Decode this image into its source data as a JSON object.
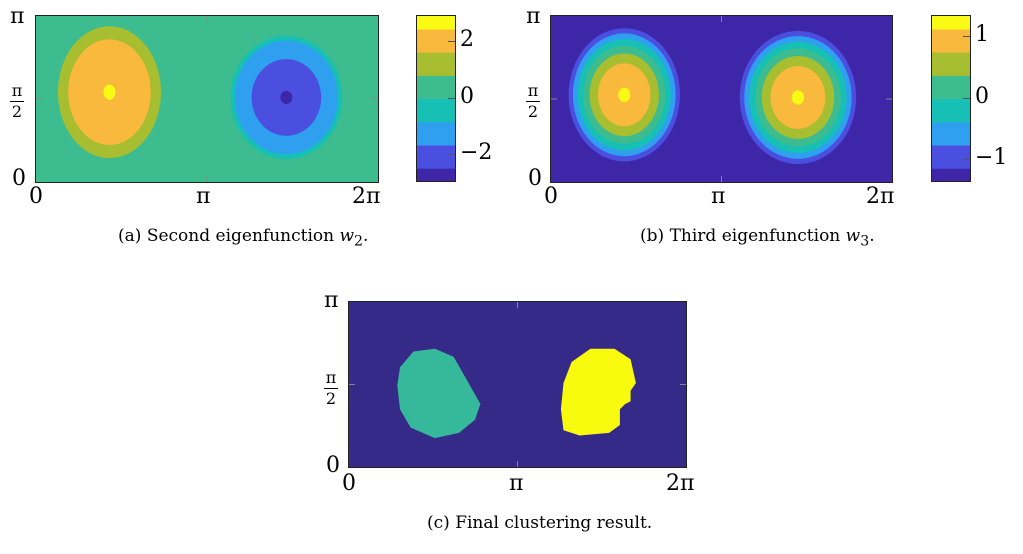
{
  "chart_data": [
    {
      "type": "heatmap",
      "caption_tag": "(a)",
      "caption_text": "Second eigenfunction",
      "caption_var": "w",
      "caption_sub": "2",
      "caption_end": ".",
      "xticks": [
        "0",
        "π",
        "2π"
      ],
      "yticks": [
        "0",
        "π",
        "π",
        "2"
      ],
      "xlim": [
        0,
        6.2832
      ],
      "ylim": [
        0,
        3.1416
      ],
      "colorbar": {
        "ticks": [
          "2",
          "0",
          "−2"
        ],
        "tick_values": [
          2,
          0,
          -2
        ],
        "range": [
          -2.9,
          2.9
        ]
      },
      "colors": [
        "#3e26a8",
        "#4a4fe0",
        "#2f9ff0",
        "#16c0b4",
        "#3cbc8f",
        "#a6be30",
        "#f8b93d",
        "#f9fb15"
      ],
      "background_value": 0,
      "blobs": [
        {
          "x": 1.35,
          "y": 1.7,
          "rx": 1.1,
          "ry": 1.45,
          "peak": 2.9
        },
        {
          "x": 4.6,
          "y": 1.6,
          "rx": 1.1,
          "ry": 1.25,
          "peak": -2.9
        }
      ]
    },
    {
      "type": "heatmap",
      "caption_tag": "(b)",
      "caption_text": "Third eigenfunction",
      "caption_var": "w",
      "caption_sub": "3",
      "caption_end": ".",
      "xticks": [
        "0",
        "π",
        "2π"
      ],
      "yticks": [
        "0",
        "π",
        "π",
        "2"
      ],
      "xlim": [
        0,
        6.2832
      ],
      "ylim": [
        0,
        3.1416
      ],
      "colorbar": {
        "ticks": [
          "1",
          "0",
          "−1"
        ],
        "tick_values": [
          1,
          0,
          -1
        ],
        "range": [
          -1.35,
          1.35
        ]
      },
      "colors": [
        "#3e26a8",
        "#4a4fe0",
        "#2f9ff0",
        "#16c0b4",
        "#3cbc8f",
        "#a6be30",
        "#f8b93d",
        "#f9fb15"
      ],
      "background_value": -1.35,
      "blobs": [
        {
          "x": 1.35,
          "y": 1.65,
          "rx": 1.1,
          "ry": 1.35,
          "peak": 1.35
        },
        {
          "x": 4.55,
          "y": 1.6,
          "rx": 1.15,
          "ry": 1.35,
          "peak": 1.35
        }
      ]
    },
    {
      "type": "heatmap",
      "caption_tag": "(c)",
      "caption_text": "Final clustering result.",
      "caption_var": "",
      "caption_sub": "",
      "caption_end": "",
      "xticks": [
        "0",
        "π",
        "2π"
      ],
      "yticks": [
        "0",
        "π",
        "π",
        "2"
      ],
      "xlim": [
        0,
        6.2832
      ],
      "ylim": [
        0,
        3.1416
      ],
      "background_color": "#352a87",
      "clusters": [
        {
          "color": "#35b99a",
          "outline": [
            [
              0.95,
              1.9
            ],
            [
              1.2,
              2.2
            ],
            [
              1.6,
              2.25
            ],
            [
              1.95,
              2.1
            ],
            [
              2.2,
              1.65
            ],
            [
              2.45,
              1.2
            ],
            [
              2.35,
              0.9
            ],
            [
              2.05,
              0.65
            ],
            [
              1.6,
              0.55
            ],
            [
              1.15,
              0.75
            ],
            [
              0.95,
              1.1
            ],
            [
              0.9,
              1.55
            ]
          ]
        },
        {
          "color": "#f9fb0e",
          "outline": [
            [
              4.0,
              1.6
            ],
            [
              4.15,
              2.0
            ],
            [
              4.5,
              2.25
            ],
            [
              4.95,
              2.25
            ],
            [
              5.25,
              2.05
            ],
            [
              5.35,
              1.6
            ],
            [
              5.25,
              1.45
            ],
            [
              5.25,
              1.25
            ],
            [
              5.15,
              1.2
            ],
            [
              5.05,
              1.1
            ],
            [
              5.05,
              0.8
            ],
            [
              4.85,
              0.65
            ],
            [
              4.3,
              0.6
            ],
            [
              4.0,
              0.7
            ],
            [
              3.95,
              1.1
            ]
          ]
        }
      ]
    }
  ]
}
